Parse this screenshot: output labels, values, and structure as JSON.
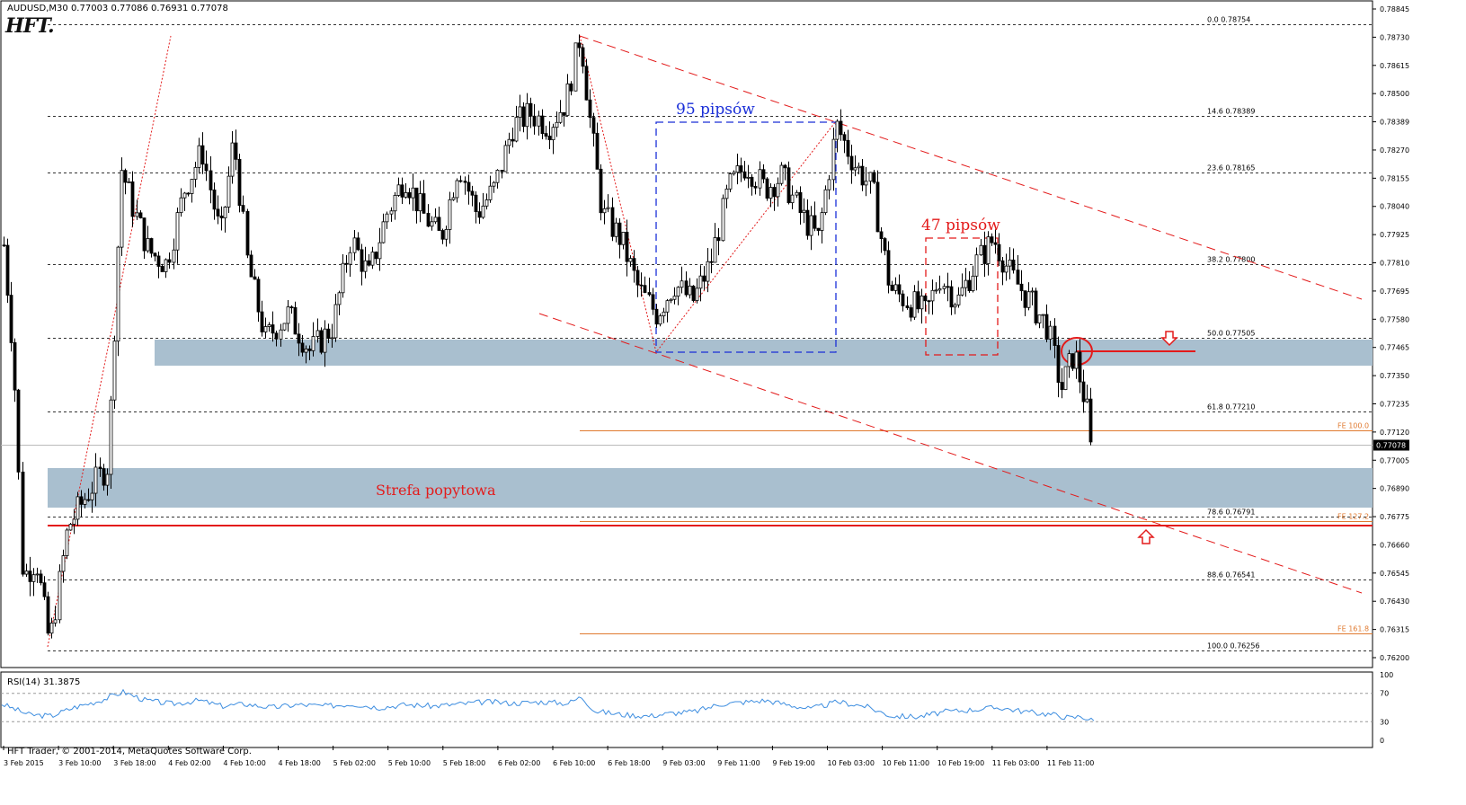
{
  "header": {
    "symbol_info": "AUDUSD,M30  0.77003 0.77086 0.76931 0.77078",
    "logo_text": "HFT."
  },
  "price_axis": {
    "ticks": [
      "0.78845",
      "0.78730",
      "0.78615",
      "0.78500",
      "0.78389",
      "0.78270",
      "0.78155",
      "0.78040",
      "0.77925",
      "0.77810",
      "0.77695",
      "0.77580",
      "0.77465",
      "0.77350",
      "0.77235",
      "0.77120",
      "0.77005",
      "0.76890",
      "0.76775",
      "0.76660",
      "0.76545",
      "0.76430",
      "0.76315",
      "0.76200"
    ],
    "current_price": "0.77078"
  },
  "fib_levels": [
    {
      "label": "0.0  0.78754",
      "price": 0.78754
    },
    {
      "label": "14.6  0.78389",
      "price": 0.78389
    },
    {
      "label": "23.6  0.78165",
      "price": 0.78165
    },
    {
      "label": "38.2  0.77800",
      "price": 0.778
    },
    {
      "label": "50.0  0.77505",
      "price": 0.77505
    },
    {
      "label": "61.8  0.77210",
      "price": 0.7721
    },
    {
      "label": "78.6  0.76791",
      "price": 0.76791
    },
    {
      "label": "88.6  0.76541",
      "price": 0.76541
    },
    {
      "label": "100.0  0.76256",
      "price": 0.76256
    }
  ],
  "fe_levels": [
    {
      "label": "FE 100.0",
      "price": 0.77135
    },
    {
      "label": "FE 127.2",
      "price": 0.76775
    },
    {
      "label": "FE 161.8",
      "price": 0.76325
    }
  ],
  "annotations": {
    "box1_label": "95 pipsów",
    "box2_label": "47 pipsów",
    "demand_zone_label": "Strefa popytowa"
  },
  "time_axis": {
    "ticks": [
      "3 Feb 2015",
      "3 Feb 10:00",
      "3 Feb 18:00",
      "4 Feb 02:00",
      "4 Feb 10:00",
      "4 Feb 18:00",
      "5 Feb 02:00",
      "5 Feb 10:00",
      "5 Feb 18:00",
      "6 Feb 02:00",
      "6 Feb 10:00",
      "6 Feb 18:00",
      "9 Feb 03:00",
      "9 Feb 11:00",
      "9 Feb 19:00",
      "10 Feb 03:00",
      "10 Feb 11:00",
      "10 Feb 19:00",
      "11 Feb 03:00",
      "11 Feb 11:00"
    ]
  },
  "rsi": {
    "title": "RSI(14) 31.3875",
    "levels": [
      "100",
      "70",
      "30",
      "0"
    ]
  },
  "footer": {
    "copyright": "HFT Trader, © 2001-2014, MetaQuotes Software Corp."
  },
  "colors": {
    "zone": "#a9bfcf",
    "red": "#e31b1b",
    "blue": "#1a2fd8",
    "fe": "#e07a30",
    "rsi_line": "#3e8ee0"
  },
  "chart_data": {
    "type": "candlestick",
    "symbol": "AUDUSD",
    "timeframe": "M30",
    "close_path": [
      [
        0,
        0.7804
      ],
      [
        15,
        0.7742
      ],
      [
        25,
        0.7655
      ],
      [
        40,
        0.7662
      ],
      [
        55,
        0.7628
      ],
      [
        75,
        0.7675
      ],
      [
        100,
        0.769
      ],
      [
        120,
        0.77
      ],
      [
        135,
        0.7818
      ],
      [
        150,
        0.78
      ],
      [
        165,
        0.7785
      ],
      [
        185,
        0.778
      ],
      [
        205,
        0.781
      ],
      [
        225,
        0.7825
      ],
      [
        245,
        0.779
      ],
      [
        260,
        0.783
      ],
      [
        275,
        0.778
      ],
      [
        295,
        0.775
      ],
      [
        320,
        0.776
      ],
      [
        345,
        0.7745
      ],
      [
        370,
        0.7755
      ],
      [
        390,
        0.779
      ],
      [
        410,
        0.7775
      ],
      [
        430,
        0.78
      ],
      [
        450,
        0.7815
      ],
      [
        470,
        0.78
      ],
      [
        490,
        0.779
      ],
      [
        510,
        0.782
      ],
      [
        530,
        0.78
      ],
      [
        550,
        0.781
      ],
      [
        570,
        0.7835
      ],
      [
        590,
        0.784
      ],
      [
        610,
        0.7835
      ],
      [
        630,
        0.7845
      ],
      [
        645,
        0.7872
      ],
      [
        655,
        0.784
      ],
      [
        670,
        0.78
      ],
      [
        690,
        0.779
      ],
      [
        710,
        0.777
      ],
      [
        730,
        0.776
      ],
      [
        750,
        0.7772
      ],
      [
        770,
        0.7765
      ],
      [
        790,
        0.778
      ],
      [
        810,
        0.781
      ],
      [
        830,
        0.782
      ],
      [
        850,
        0.781
      ],
      [
        870,
        0.7815
      ],
      [
        890,
        0.78
      ],
      [
        910,
        0.779
      ],
      [
        930,
        0.7835
      ],
      [
        950,
        0.782
      ],
      [
        970,
        0.781
      ],
      [
        990,
        0.777
      ],
      [
        1010,
        0.7765
      ],
      [
        1030,
        0.776
      ],
      [
        1045,
        0.7775
      ],
      [
        1065,
        0.7765
      ],
      [
        1085,
        0.778
      ],
      [
        1105,
        0.779
      ],
      [
        1125,
        0.7775
      ],
      [
        1145,
        0.7765
      ],
      [
        1165,
        0.7755
      ],
      [
        1180,
        0.773
      ],
      [
        1195,
        0.7745
      ],
      [
        1210,
        0.772
      ],
      [
        1215,
        0.77
      ]
    ],
    "rsi_path": [
      [
        0,
        55
      ],
      [
        30,
        40
      ],
      [
        55,
        38
      ],
      [
        80,
        50
      ],
      [
        110,
        60
      ],
      [
        135,
        72
      ],
      [
        160,
        60
      ],
      [
        190,
        55
      ],
      [
        220,
        60
      ],
      [
        245,
        52
      ],
      [
        270,
        55
      ],
      [
        300,
        50
      ],
      [
        330,
        54
      ],
      [
        360,
        52
      ],
      [
        390,
        55
      ],
      [
        420,
        50
      ],
      [
        450,
        54
      ],
      [
        480,
        52
      ],
      [
        510,
        55
      ],
      [
        540,
        58
      ],
      [
        570,
        56
      ],
      [
        600,
        58
      ],
      [
        630,
        56
      ],
      [
        645,
        65
      ],
      [
        660,
        45
      ],
      [
        690,
        40
      ],
      [
        720,
        38
      ],
      [
        745,
        42
      ],
      [
        770,
        44
      ],
      [
        800,
        55
      ],
      [
        830,
        58
      ],
      [
        850,
        60
      ],
      [
        870,
        55
      ],
      [
        900,
        48
      ],
      [
        930,
        58
      ],
      [
        960,
        52
      ],
      [
        990,
        38
      ],
      [
        1020,
        37
      ],
      [
        1050,
        44
      ],
      [
        1080,
        47
      ],
      [
        1110,
        50
      ],
      [
        1140,
        44
      ],
      [
        1170,
        40
      ],
      [
        1190,
        35
      ],
      [
        1200,
        38
      ],
      [
        1215,
        31
      ]
    ]
  }
}
